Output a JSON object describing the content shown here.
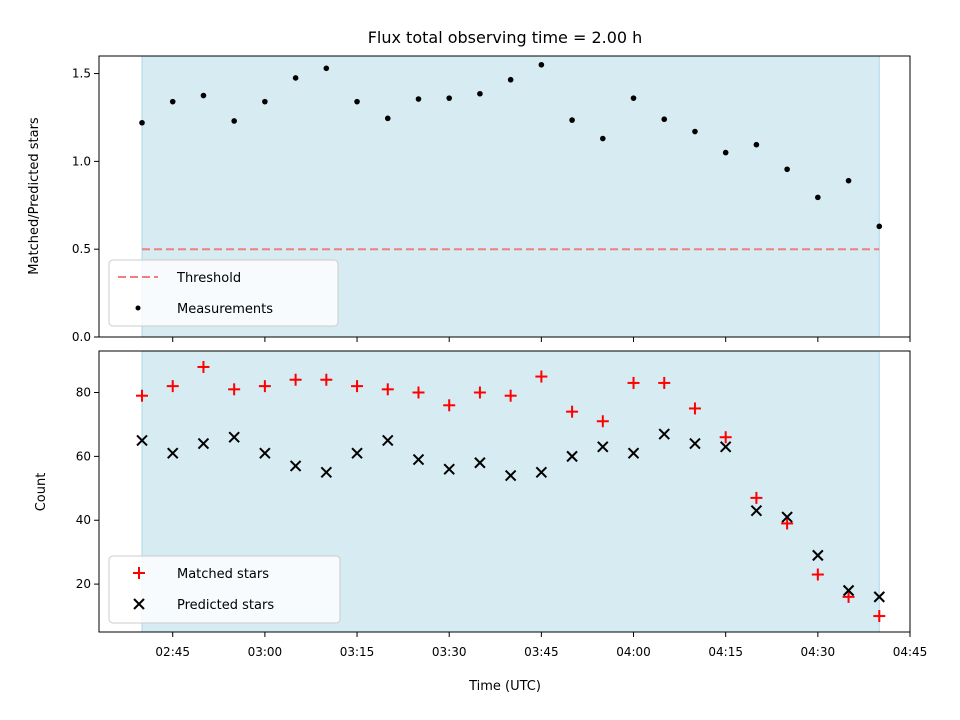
{
  "title": "Flux total observing time = 2.00 h",
  "xlabel": "Time (UTC)",
  "colors": {
    "shade": "#add8e6",
    "threshold": "#f08080",
    "matched": "#ff0000",
    "predicted": "#000000",
    "measure": "#000000"
  },
  "chart_data": [
    {
      "type": "scatter",
      "ylabel": "Matched/Predicted stars",
      "ylim": [
        0,
        1.6
      ],
      "yticks": [
        "0.0",
        "0.5",
        "1.0",
        "1.5"
      ],
      "xlim": [
        "02:33",
        "04:45"
      ],
      "shaded_span": [
        "02:40",
        "04:40"
      ],
      "threshold": 0.5,
      "legend_position": "lower-left",
      "legend": [
        "Threshold",
        "Measurements"
      ],
      "x": [
        "02:40",
        "02:45",
        "02:50",
        "02:55",
        "03:00",
        "03:05",
        "03:10",
        "03:15",
        "03:20",
        "03:25",
        "03:30",
        "03:35",
        "03:40",
        "03:45",
        "03:50",
        "03:55",
        "04:00",
        "04:05",
        "04:10",
        "04:15",
        "04:20",
        "04:25",
        "04:30",
        "04:35",
        "04:40"
      ],
      "series": [
        {
          "name": "Measurements",
          "values": [
            1.22,
            1.34,
            1.375,
            1.23,
            1.34,
            1.475,
            1.53,
            1.34,
            1.245,
            1.355,
            1.36,
            1.385,
            1.465,
            1.55,
            1.235,
            1.13,
            1.36,
            1.24,
            1.17,
            1.05,
            1.095,
            0.955,
            0.795,
            0.89,
            0.63
          ]
        }
      ]
    },
    {
      "type": "scatter",
      "ylabel": "Count",
      "ylim": [
        5,
        93
      ],
      "yticks": [
        "20",
        "40",
        "60",
        "80"
      ],
      "xlim": [
        "02:33",
        "04:45"
      ],
      "shaded_span": [
        "02:40",
        "04:40"
      ],
      "xticks": [
        "02:45",
        "03:00",
        "03:15",
        "03:30",
        "03:45",
        "04:00",
        "04:15",
        "04:30",
        "04:45"
      ],
      "legend_position": "lower-left",
      "legend": [
        "Matched stars",
        "Predicted stars"
      ],
      "x": [
        "02:40",
        "02:45",
        "02:50",
        "02:55",
        "03:00",
        "03:05",
        "03:10",
        "03:15",
        "03:20",
        "03:25",
        "03:30",
        "03:35",
        "03:40",
        "03:45",
        "03:50",
        "03:55",
        "04:00",
        "04:05",
        "04:10",
        "04:15",
        "04:20",
        "04:25",
        "04:30",
        "04:35",
        "04:40"
      ],
      "series": [
        {
          "name": "Matched stars",
          "values": [
            79,
            82,
            88,
            81,
            82,
            84,
            84,
            82,
            81,
            80,
            76,
            80,
            79,
            85,
            74,
            71,
            83,
            83,
            75,
            66,
            47,
            39,
            23,
            16,
            10
          ]
        },
        {
          "name": "Predicted stars",
          "values": [
            65,
            61,
            64,
            66,
            61,
            57,
            55,
            61,
            65,
            59,
            56,
            58,
            54,
            55,
            60,
            63,
            61,
            67,
            64,
            63,
            43,
            41,
            29,
            18,
            16
          ]
        }
      ]
    }
  ]
}
